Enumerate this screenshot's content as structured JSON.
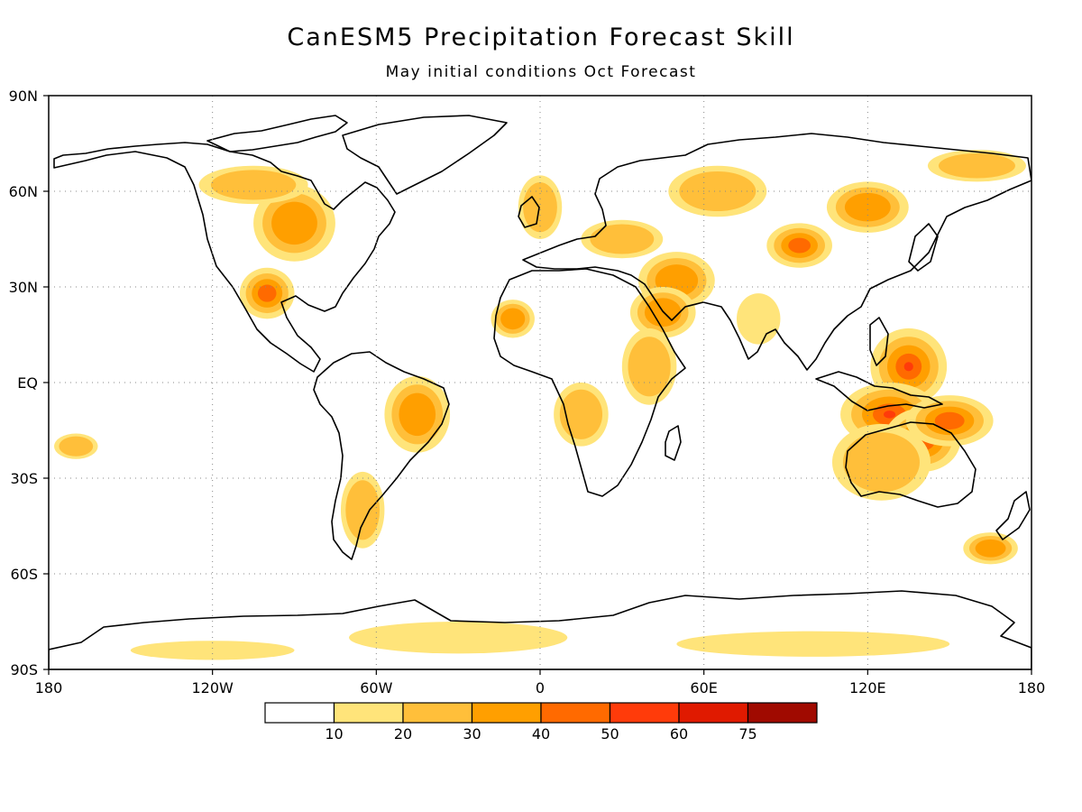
{
  "map": {
    "title": "CanESM5 Precipitation Forecast Skill",
    "subtitle": "May initial conditions  Oct Forecast",
    "lat_ticks": [
      {
        "lat": 90,
        "label": "90N"
      },
      {
        "lat": 60,
        "label": "60N"
      },
      {
        "lat": 30,
        "label": "30N"
      },
      {
        "lat": 0,
        "label": "EQ"
      },
      {
        "lat": -30,
        "label": "30S"
      },
      {
        "lat": -60,
        "label": "60S"
      },
      {
        "lat": -90,
        "label": "90S"
      }
    ],
    "lon_ticks": [
      {
        "lon": -180,
        "label": "180"
      },
      {
        "lon": -120,
        "label": "120W"
      },
      {
        "lon": -60,
        "label": "60W"
      },
      {
        "lon": 0,
        "label": "0"
      },
      {
        "lon": 60,
        "label": "60E"
      },
      {
        "lon": 120,
        "label": "120E"
      },
      {
        "lon": 180,
        "label": "180"
      }
    ],
    "grid": true,
    "extent": {
      "lon": [
        -180,
        180
      ],
      "lat": [
        -90,
        90
      ]
    }
  },
  "legend": {
    "colors": [
      "#ffffff",
      "#ffe47a",
      "#ffbf3a",
      "#ff9f00",
      "#ff6a00",
      "#ff3b0a",
      "#e01a00",
      "#a00a00"
    ],
    "labels": [
      "10",
      "20",
      "30",
      "40",
      "50",
      "60",
      "75"
    ]
  },
  "skill_regions": [
    {
      "lon": 135,
      "lat": 5,
      "rx": 14,
      "ry": 12,
      "level": 5
    },
    {
      "lon": 128,
      "lat": -10,
      "rx": 18,
      "ry": 10,
      "level": 5
    },
    {
      "lon": 140,
      "lat": -18,
      "rx": 14,
      "ry": 10,
      "level": 4
    },
    {
      "lon": 125,
      "lat": -25,
      "rx": 18,
      "ry": 12,
      "level": 2
    },
    {
      "lon": 150,
      "lat": -12,
      "rx": 16,
      "ry": 8,
      "level": 4
    },
    {
      "lon": 95,
      "lat": 43,
      "rx": 12,
      "ry": 7,
      "level": 4
    },
    {
      "lon": 50,
      "lat": 32,
      "rx": 14,
      "ry": 9,
      "level": 3
    },
    {
      "lon": 45,
      "lat": 22,
      "rx": 12,
      "ry": 8,
      "level": 3
    },
    {
      "lon": 40,
      "lat": 5,
      "rx": 10,
      "ry": 12,
      "level": 2
    },
    {
      "lon": -100,
      "lat": 28,
      "rx": 10,
      "ry": 8,
      "level": 4
    },
    {
      "lon": -90,
      "lat": 50,
      "rx": 15,
      "ry": 12,
      "level": 3
    },
    {
      "lon": -105,
      "lat": 62,
      "rx": 20,
      "ry": 6,
      "level": 2
    },
    {
      "lon": -45,
      "lat": -10,
      "rx": 12,
      "ry": 12,
      "level": 3
    },
    {
      "lon": -65,
      "lat": -40,
      "rx": 8,
      "ry": 12,
      "level": 2
    },
    {
      "lon": -10,
      "lat": 20,
      "rx": 8,
      "ry": 6,
      "level": 3
    },
    {
      "lon": 15,
      "lat": -10,
      "rx": 10,
      "ry": 10,
      "level": 2
    },
    {
      "lon": 65,
      "lat": 60,
      "rx": 18,
      "ry": 8,
      "level": 2
    },
    {
      "lon": 120,
      "lat": 55,
      "rx": 15,
      "ry": 8,
      "level": 3
    },
    {
      "lon": 160,
      "lat": 68,
      "rx": 18,
      "ry": 5,
      "level": 2
    },
    {
      "lon": -170,
      "lat": -20,
      "rx": 8,
      "ry": 4,
      "level": 2
    },
    {
      "lon": 165,
      "lat": -52,
      "rx": 10,
      "ry": 5,
      "level": 3
    },
    {
      "lon": -30,
      "lat": -80,
      "rx": 40,
      "ry": 5,
      "level": 1
    },
    {
      "lon": 100,
      "lat": -82,
      "rx": 50,
      "ry": 4,
      "level": 1
    },
    {
      "lon": -120,
      "lat": -84,
      "rx": 30,
      "ry": 3,
      "level": 1
    },
    {
      "lon": 80,
      "lat": 20,
      "rx": 8,
      "ry": 8,
      "level": 1
    },
    {
      "lon": 0,
      "lat": 55,
      "rx": 8,
      "ry": 10,
      "level": 2
    },
    {
      "lon": 30,
      "lat": 45,
      "rx": 15,
      "ry": 6,
      "level": 2
    }
  ]
}
